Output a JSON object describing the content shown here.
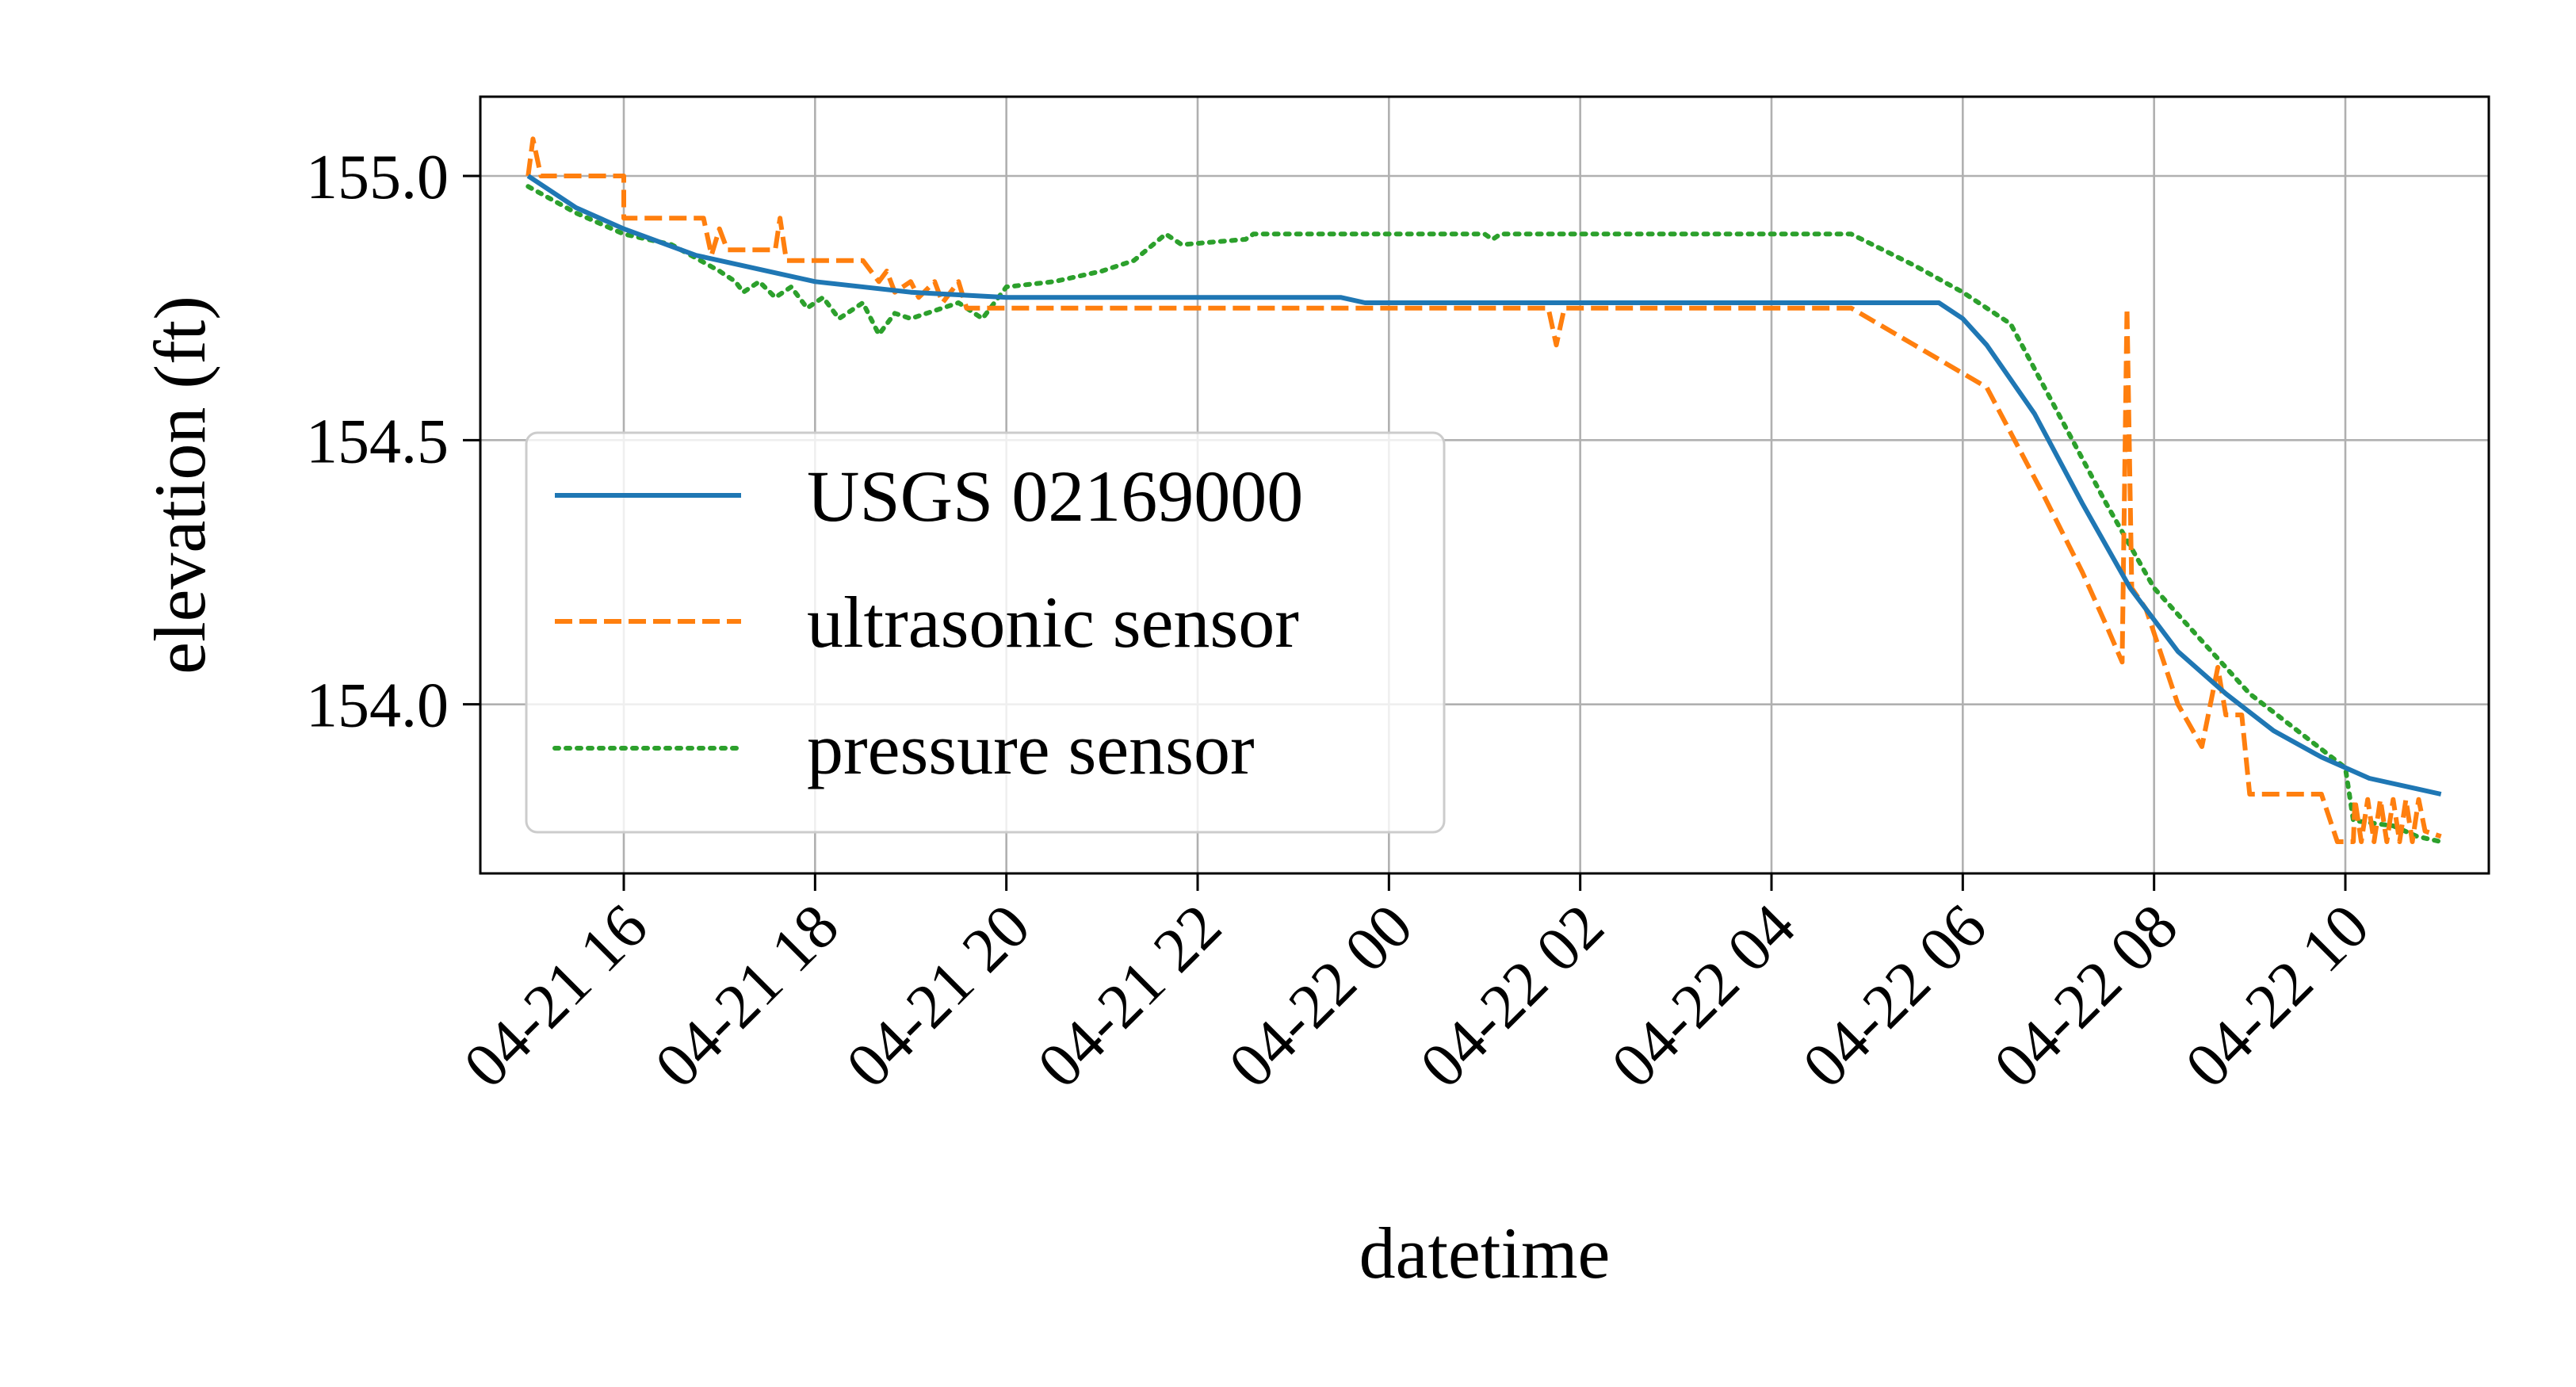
{
  "chart_data": {
    "type": "line",
    "xlabel": "datetime",
    "ylabel": "elevation (ft)",
    "xlim": [
      "2022-04-21 14:30",
      "2022-04-22 11:30"
    ],
    "ylim": [
      153.68,
      155.15
    ],
    "grid": true,
    "legend_position": "center-left",
    "x_ticks": [
      {
        "t": "2022-04-21 16:00",
        "label": "04-21 16"
      },
      {
        "t": "2022-04-21 18:00",
        "label": "04-21 18"
      },
      {
        "t": "2022-04-21 20:00",
        "label": "04-21 20"
      },
      {
        "t": "2022-04-21 22:00",
        "label": "04-21 22"
      },
      {
        "t": "2022-04-22 00:00",
        "label": "04-22 00"
      },
      {
        "t": "2022-04-22 02:00",
        "label": "04-22 02"
      },
      {
        "t": "2022-04-22 04:00",
        "label": "04-22 04"
      },
      {
        "t": "2022-04-22 06:00",
        "label": "04-22 06"
      },
      {
        "t": "2022-04-22 08:00",
        "label": "04-22 08"
      },
      {
        "t": "2022-04-22 10:00",
        "label": "04-22 10"
      }
    ],
    "y_ticks": [
      {
        "v": 154.0,
        "label": "154.0"
      },
      {
        "v": 154.5,
        "label": "154.5"
      },
      {
        "v": 155.0,
        "label": "155.0"
      }
    ],
    "series": [
      {
        "name": "USGS 02169000",
        "color": "#1f77b4",
        "style": "solid",
        "points": [
          [
            "2022-04-21 15:00",
            155.0
          ],
          [
            "2022-04-21 15:30",
            154.94
          ],
          [
            "2022-04-21 16:00",
            154.9
          ],
          [
            "2022-04-21 16:45",
            154.85
          ],
          [
            "2022-04-21 17:15",
            154.83
          ],
          [
            "2022-04-21 18:00",
            154.8
          ],
          [
            "2022-04-21 19:00",
            154.78
          ],
          [
            "2022-04-21 20:00",
            154.77
          ],
          [
            "2022-04-21 23:30",
            154.77
          ],
          [
            "2022-04-21 23:45",
            154.76
          ],
          [
            "2022-04-22 03:45",
            154.76
          ],
          [
            "2022-04-22 04:15",
            154.76
          ],
          [
            "2022-04-22 05:45",
            154.76
          ],
          [
            "2022-04-22 06:00",
            154.73
          ],
          [
            "2022-04-22 06:15",
            154.68
          ],
          [
            "2022-04-22 06:45",
            154.55
          ],
          [
            "2022-04-22 07:15",
            154.38
          ],
          [
            "2022-04-22 07:45",
            154.22
          ],
          [
            "2022-04-22 08:15",
            154.1
          ],
          [
            "2022-04-22 08:45",
            154.02
          ],
          [
            "2022-04-22 09:15",
            153.95
          ],
          [
            "2022-04-22 09:45",
            153.9
          ],
          [
            "2022-04-22 10:15",
            153.86
          ],
          [
            "2022-04-22 10:45",
            153.84
          ],
          [
            "2022-04-22 11:00",
            153.83
          ]
        ]
      },
      {
        "name": "ultrasonic sensor",
        "color": "#ff7f0e",
        "style": "dashed",
        "points": [
          [
            "2022-04-21 15:00",
            155.0
          ],
          [
            "2022-04-21 15:03",
            155.07
          ],
          [
            "2022-04-21 15:08",
            155.0
          ],
          [
            "2022-04-21 16:00",
            155.0
          ],
          [
            "2022-04-21 16:00",
            154.92
          ],
          [
            "2022-04-21 16:50",
            154.92
          ],
          [
            "2022-04-21 16:55",
            154.85
          ],
          [
            "2022-04-21 17:00",
            154.9
          ],
          [
            "2022-04-21 17:05",
            154.86
          ],
          [
            "2022-04-21 17:35",
            154.86
          ],
          [
            "2022-04-21 17:38",
            154.92
          ],
          [
            "2022-04-21 17:42",
            154.84
          ],
          [
            "2022-04-21 18:30",
            154.84
          ],
          [
            "2022-04-21 18:40",
            154.8
          ],
          [
            "2022-04-21 18:45",
            154.82
          ],
          [
            "2022-04-21 18:50",
            154.78
          ],
          [
            "2022-04-21 19:00",
            154.8
          ],
          [
            "2022-04-21 19:05",
            154.77
          ],
          [
            "2022-04-21 19:15",
            154.8
          ],
          [
            "2022-04-21 19:20",
            154.76
          ],
          [
            "2022-04-21 19:30",
            154.8
          ],
          [
            "2022-04-21 19:35",
            154.75
          ],
          [
            "2022-04-22 01:40",
            154.75
          ],
          [
            "2022-04-22 01:45",
            154.68
          ],
          [
            "2022-04-22 01:50",
            154.75
          ],
          [
            "2022-04-22 04:50",
            154.75
          ],
          [
            "2022-04-22 06:15",
            154.6
          ],
          [
            "2022-04-22 06:50",
            154.4
          ],
          [
            "2022-04-22 07:15",
            154.25
          ],
          [
            "2022-04-22 07:30",
            154.15
          ],
          [
            "2022-04-22 07:40",
            154.08
          ],
          [
            "2022-04-22 07:43",
            154.75
          ],
          [
            "2022-04-22 07:46",
            154.22
          ],
          [
            "2022-04-22 07:55",
            154.18
          ],
          [
            "2022-04-22 08:15",
            154.0
          ],
          [
            "2022-04-22 08:30",
            153.92
          ],
          [
            "2022-04-22 08:40",
            154.07
          ],
          [
            "2022-04-22 08:45",
            153.98
          ],
          [
            "2022-04-22 08:55",
            153.98
          ],
          [
            "2022-04-22 09:00",
            153.83
          ],
          [
            "2022-04-22 09:45",
            153.83
          ],
          [
            "2022-04-22 09:55",
            153.74
          ],
          [
            "2022-04-22 10:05",
            153.74
          ],
          [
            "2022-04-22 10:06",
            153.82
          ],
          [
            "2022-04-22 10:10",
            153.74
          ],
          [
            "2022-04-22 10:14",
            153.82
          ],
          [
            "2022-04-22 10:18",
            153.74
          ],
          [
            "2022-04-22 10:22",
            153.82
          ],
          [
            "2022-04-22 10:26",
            153.74
          ],
          [
            "2022-04-22 10:30",
            153.82
          ],
          [
            "2022-04-22 10:34",
            153.74
          ],
          [
            "2022-04-22 10:38",
            153.82
          ],
          [
            "2022-04-22 10:42",
            153.74
          ],
          [
            "2022-04-22 10:46",
            153.82
          ],
          [
            "2022-04-22 10:50",
            153.76
          ],
          [
            "2022-04-22 11:00",
            153.75
          ]
        ]
      },
      {
        "name": "pressure sensor",
        "color": "#2ca02c",
        "style": "dotted",
        "points": [
          [
            "2022-04-21 15:00",
            154.98
          ],
          [
            "2022-04-21 15:30",
            154.93
          ],
          [
            "2022-04-21 16:00",
            154.89
          ],
          [
            "2022-04-21 16:30",
            154.87
          ],
          [
            "2022-04-21 17:00",
            154.82
          ],
          [
            "2022-04-21 17:10",
            154.8
          ],
          [
            "2022-04-21 17:15",
            154.78
          ],
          [
            "2022-04-21 17:25",
            154.8
          ],
          [
            "2022-04-21 17:35",
            154.77
          ],
          [
            "2022-04-21 17:45",
            154.79
          ],
          [
            "2022-04-21 17:55",
            154.75
          ],
          [
            "2022-04-21 18:05",
            154.77
          ],
          [
            "2022-04-21 18:15",
            154.73
          ],
          [
            "2022-04-21 18:30",
            154.76
          ],
          [
            "2022-04-21 18:40",
            154.7
          ],
          [
            "2022-04-21 18:50",
            154.74
          ],
          [
            "2022-04-21 19:00",
            154.73
          ],
          [
            "2022-04-21 19:30",
            154.76
          ],
          [
            "2022-04-21 19:45",
            154.73
          ],
          [
            "2022-04-21 20:00",
            154.79
          ],
          [
            "2022-04-21 20:30",
            154.8
          ],
          [
            "2022-04-21 21:00",
            154.82
          ],
          [
            "2022-04-21 21:20",
            154.84
          ],
          [
            "2022-04-21 21:40",
            154.89
          ],
          [
            "2022-04-21 21:50",
            154.87
          ],
          [
            "2022-04-21 22:30",
            154.88
          ],
          [
            "2022-04-21 22:35",
            154.89
          ],
          [
            "2022-04-22 01:00",
            154.89
          ],
          [
            "2022-04-22 01:05",
            154.88
          ],
          [
            "2022-04-22 01:10",
            154.89
          ],
          [
            "2022-04-22 04:50",
            154.89
          ],
          [
            "2022-04-22 05:30",
            154.83
          ],
          [
            "2022-04-22 06:00",
            154.78
          ],
          [
            "2022-04-22 06:30",
            154.72
          ],
          [
            "2022-04-22 07:00",
            154.55
          ],
          [
            "2022-04-22 07:30",
            154.38
          ],
          [
            "2022-04-22 08:00",
            154.22
          ],
          [
            "2022-04-22 08:30",
            154.12
          ],
          [
            "2022-04-22 09:00",
            154.02
          ],
          [
            "2022-04-22 09:30",
            153.95
          ],
          [
            "2022-04-22 10:00",
            153.88
          ],
          [
            "2022-04-22 10:05",
            153.78
          ],
          [
            "2022-04-22 10:30",
            153.77
          ],
          [
            "2022-04-22 10:45",
            153.75
          ],
          [
            "2022-04-22 11:00",
            153.74
          ]
        ]
      }
    ]
  }
}
